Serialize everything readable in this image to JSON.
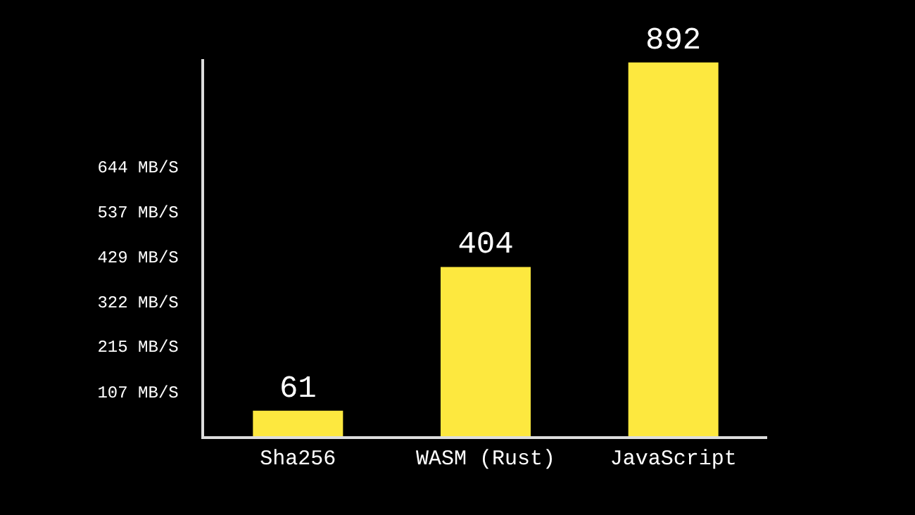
{
  "chart_data": {
    "type": "bar",
    "categories": [
      "Sha256",
      "WASM (Rust)",
      "JavaScript"
    ],
    "values": [
      61,
      404,
      892
    ],
    "color": "#fde83f",
    "data_labels": true,
    "ylim": [
      0,
      900
    ],
    "yticks": [
      {
        "value": 107,
        "label": "107 MB/S"
      },
      {
        "value": 215,
        "label": "215 MB/S"
      },
      {
        "value": 322,
        "label": "322 MB/S"
      },
      {
        "value": 429,
        "label": "429 MB/S"
      },
      {
        "value": 537,
        "label": "537 MB/S"
      },
      {
        "value": 644,
        "label": "644 MB/S"
      }
    ],
    "grid": false
  }
}
